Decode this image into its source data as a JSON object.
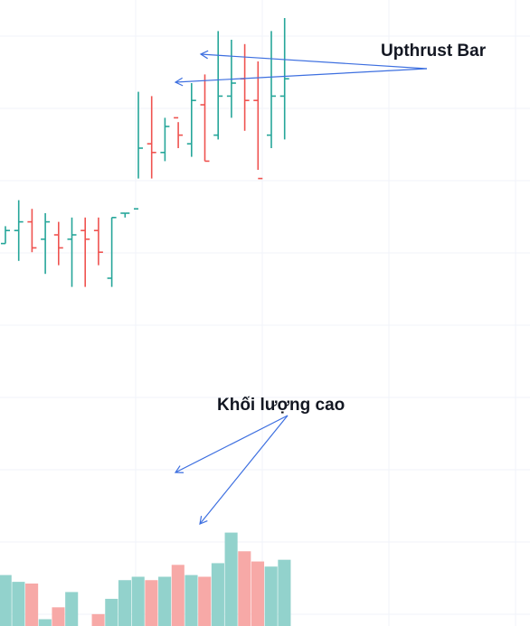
{
  "chart_data": {
    "type": "ohlc_volume",
    "title": "",
    "xlabel": "",
    "ylabel": "",
    "grid": true,
    "colors": {
      "up": "#26a69a",
      "down": "#ef5350",
      "vol_up": "#92d2cc",
      "vol_down": "#f7a9a7",
      "arrow": "#3d6fe0"
    },
    "price_ylim": [
      0,
      100
    ],
    "volume_ylim": [
      0,
      100
    ],
    "bars": [
      {
        "o": 48,
        "h": 52,
        "l": 48,
        "c": 51,
        "v": 30
      },
      {
        "o": 51,
        "h": 58,
        "l": 44,
        "c": 53,
        "v": 26
      },
      {
        "o": 53,
        "h": 56,
        "l": 46,
        "c": 47,
        "v": 25
      },
      {
        "o": 49,
        "h": 55,
        "l": 41,
        "c": 53,
        "v": 4
      },
      {
        "o": 50,
        "h": 53,
        "l": 43,
        "c": 47,
        "v": 11
      },
      {
        "o": 49,
        "h": 54,
        "l": 38,
        "c": 50,
        "v": 20
      },
      {
        "o": 51,
        "h": 54,
        "l": 38,
        "c": 49,
        "v": 0
      },
      {
        "o": 51,
        "h": 54,
        "l": 43,
        "c": 46,
        "v": 7
      },
      {
        "o": 40,
        "h": 54,
        "l": 38,
        "c": 54,
        "v": 16
      },
      {
        "o": 55,
        "h": 55,
        "l": 54,
        "c": 55,
        "v": 27
      },
      {
        "o": 56,
        "h": 83,
        "l": 63,
        "c": 70,
        "v": 29
      },
      {
        "o": 71,
        "h": 82,
        "l": 63,
        "c": 69,
        "v": 27
      },
      {
        "o": 69,
        "h": 77,
        "l": 67,
        "c": 75,
        "v": 29
      },
      {
        "o": 77,
        "h": 76,
        "l": 70,
        "c": 73,
        "v": 36
      },
      {
        "o": 71,
        "h": 85,
        "l": 68,
        "c": 81,
        "v": 30
      },
      {
        "o": 80,
        "h": 87,
        "l": 67,
        "c": 67,
        "v": 29
      },
      {
        "o": 73,
        "h": 97,
        "l": 72,
        "c": 82,
        "v": 37
      },
      {
        "o": 82,
        "h": 95,
        "l": 77,
        "c": 85,
        "v": 55
      },
      {
        "o": 86,
        "h": 94,
        "l": 74,
        "c": 81,
        "v": 44
      },
      {
        "o": 81,
        "h": 90,
        "l": 65,
        "c": 63,
        "v": 38
      },
      {
        "o": 73,
        "h": 97,
        "l": 70,
        "c": 82,
        "v": 35
      },
      {
        "o": 82,
        "h": 100,
        "l": 72,
        "c": 86,
        "v": 39
      }
    ],
    "annotations": [
      {
        "text": "Upthrust Bar"
      },
      {
        "text": "Khối lượng cao"
      }
    ]
  }
}
